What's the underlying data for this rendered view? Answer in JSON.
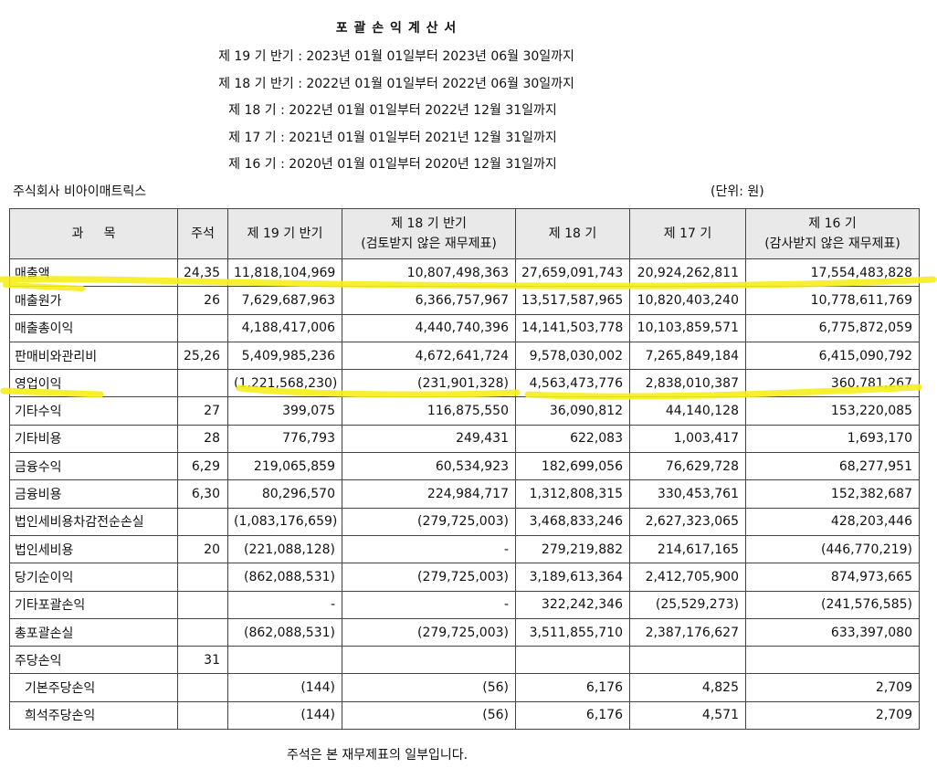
{
  "title": "포 괄 손 익 계 산 서",
  "periods": [
    "제 19 기 반기 : 2023년 01월 01일부터 2023년 06월 30일까지",
    "제 18 기 반기 : 2022년 01월 01일부터 2022년 06월 30일까지",
    "제 18 기 : 2022년 01월 01일부터 2022년 12월 31일까지",
    "제 17 기 : 2021년 01월 01일부터 2021년 12월 31일까지",
    "제 16 기 : 2020년 01월 01일부터 2020년 12월 31일까지"
  ],
  "company": "주식회사 비아이매트릭스",
  "unit": "(단위: 원)",
  "header": {
    "account": "과     목",
    "note": "주석",
    "c19h": "제 19 기 반기",
    "c18h_line1": "제 18 기 반기",
    "c18h_line2": "(검토받지 않은 재무제표)",
    "c18": "제 18 기",
    "c17": "제 17 기",
    "c16_line1": "제 16 기",
    "c16_line2": "(감사받지 않은 재무제표)"
  },
  "rows": [
    {
      "label": "매출액",
      "note": "24,35",
      "c19h": "11,818,104,969",
      "c18h": "10,807,498,363",
      "c18": "27,659,091,743",
      "c17": "20,924,262,811",
      "c16": "17,554,483,828"
    },
    {
      "label": "매출원가",
      "note": "26",
      "c19h": "7,629,687,963",
      "c18h": "6,366,757,967",
      "c18": "13,517,587,965",
      "c17": "10,820,403,240",
      "c16": "10,778,611,769"
    },
    {
      "label": "매출총이익",
      "note": "",
      "c19h": "4,188,417,006",
      "c18h": "4,440,740,396",
      "c18": "14,141,503,778",
      "c17": "10,103,859,571",
      "c16": "6,775,872,059"
    },
    {
      "label": "판매비와관리비",
      "note": "25,26",
      "c19h": "5,409,985,236",
      "c18h": "4,672,641,724",
      "c18": "9,578,030,002",
      "c17": "7,265,849,184",
      "c16": "6,415,090,792"
    },
    {
      "label": "영업이익",
      "note": "",
      "c19h": "(1,221,568,230)",
      "c18h": "(231,901,328)",
      "c18": "4,563,473,776",
      "c17": "2,838,010,387",
      "c16": "360,781,267"
    },
    {
      "label": "기타수익",
      "note": "27",
      "c19h": "399,075",
      "c18h": "116,875,550",
      "c18": "36,090,812",
      "c17": "44,140,128",
      "c16": "153,220,085"
    },
    {
      "label": "기타비용",
      "note": "28",
      "c19h": "776,793",
      "c18h": "249,431",
      "c18": "622,083",
      "c17": "1,003,417",
      "c16": "1,693,170"
    },
    {
      "label": "금융수익",
      "note": "6,29",
      "c19h": "219,065,859",
      "c18h": "60,534,923",
      "c18": "182,699,056",
      "c17": "76,629,728",
      "c16": "68,277,951"
    },
    {
      "label": "금융비용",
      "note": "6,30",
      "c19h": "80,296,570",
      "c18h": "224,984,717",
      "c18": "1,312,808,315",
      "c17": "330,453,761",
      "c16": "152,382,687"
    },
    {
      "label": "법인세비용차감전순손실",
      "note": "",
      "c19h": "(1,083,176,659)",
      "c18h": "(279,725,003)",
      "c18": "3,468,833,246",
      "c17": "2,627,323,065",
      "c16": "428,203,446"
    },
    {
      "label": "법인세비용",
      "note": "20",
      "c19h": "(221,088,128)",
      "c18h": "-",
      "c18": "279,219,882",
      "c17": "214,617,165",
      "c16": "(446,770,219)"
    },
    {
      "label": "당기순이익",
      "note": "",
      "c19h": "(862,088,531)",
      "c18h": "(279,725,003)",
      "c18": "3,189,613,364",
      "c17": "2,412,705,900",
      "c16": "874,973,665"
    },
    {
      "label": "기타포괄손익",
      "note": "",
      "c19h": "-",
      "c18h": "-",
      "c18": "322,242,346",
      "c17": "(25,529,273)",
      "c16": "(241,576,585)"
    },
    {
      "label": "총포괄손실",
      "note": "",
      "c19h": "(862,088,531)",
      "c18h": "(279,725,003)",
      "c18": "3,511,855,710",
      "c17": "2,387,176,627",
      "c16": "633,397,080"
    },
    {
      "label": "주당손익",
      "note": "31",
      "c19h": "",
      "c18h": "",
      "c18": "",
      "c17": "",
      "c16": ""
    },
    {
      "label": "기본주당손익",
      "note": "",
      "c19h": "(144)",
      "c18h": "(56)",
      "c18": "6,176",
      "c17": "4,825",
      "c16": "2,709"
    },
    {
      "label": "희석주당손익",
      "note": "",
      "c19h": "(144)",
      "c18h": "(56)",
      "c18": "6,176",
      "c17": "4,571",
      "c16": "2,709"
    }
  ],
  "footnote": "주석은 본 재무제표의 일부입니다.",
  "highlight_color": "#f5ee1a"
}
